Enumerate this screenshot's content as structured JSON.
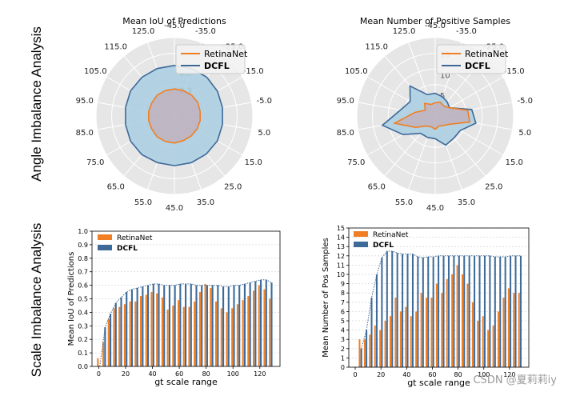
{
  "row_labels": {
    "top": "Angle Imbalance Analysis",
    "bottom": "Scale Imbalance Analysis"
  },
  "watermark": "CSDN @夏莉莉iy",
  "colors": {
    "retinanet": "#F07F23",
    "dcfl": "#3D6A99",
    "dcfl_fill": "#A8CCE0",
    "retina_fill": "#C9A0A8",
    "polar_bg": "#E6E6E6",
    "grid": "#FFFFFF"
  },
  "chart_data": [
    {
      "type": "radar",
      "title": "Mean IoU of Predictions",
      "angle_labels": [
        "-45.0",
        "-35.0",
        "-25.0",
        "-15.0",
        "-5.0",
        "5.0",
        "15.0",
        "25.0",
        "35.0",
        "45.0",
        "55.0",
        "65.0",
        "75.0",
        "85.0",
        "95.0",
        "105.0",
        "115.0",
        "125.0"
      ],
      "radial_ticks": [
        "0.3",
        "0.5"
      ],
      "rmax": 0.9,
      "legend": [
        "RetinaNet",
        "DCFL"
      ],
      "series": [
        {
          "name": "RetinaNet",
          "values": [
            0.31,
            0.31,
            0.31,
            0.31,
            0.3,
            0.3,
            0.3,
            0.3,
            0.3,
            0.31,
            0.31,
            0.31,
            0.3,
            0.3,
            0.3,
            0.3,
            0.31,
            0.31
          ]
        },
        {
          "name": "DCFL",
          "values": [
            0.58,
            0.58,
            0.58,
            0.57,
            0.56,
            0.56,
            0.57,
            0.57,
            0.57,
            0.57,
            0.57,
            0.58,
            0.58,
            0.57,
            0.57,
            0.58,
            0.58,
            0.58
          ]
        }
      ]
    },
    {
      "type": "radar",
      "title": "Mean Number of Positive Samples",
      "angle_labels": [
        "-45.0",
        "-35.0",
        "-25.0",
        "-15.0",
        "-5.0",
        "5.0",
        "15.0",
        "25.0",
        "35.0",
        "45.0",
        "55.0",
        "65.0",
        "75.0",
        "85.0",
        "95.0",
        "105.0",
        "115.0",
        "125.0"
      ],
      "radial_ticks": [
        "5",
        "10",
        "15"
      ],
      "rmax": 19,
      "legend": [
        "RetinaNet",
        "DCFL"
      ],
      "series": [
        {
          "name": "RetinaNet",
          "values": [
            3.2,
            3.6,
            3.2,
            4.0,
            8.0,
            8.5,
            4.0,
            3.0,
            2.6,
            3.2,
            2.8,
            3.2,
            5.5,
            10.0,
            5.0,
            2.8,
            4.0,
            3.0
          ]
        },
        {
          "name": "DCFL",
          "values": [
            5.5,
            5.0,
            4.5,
            4.0,
            9.0,
            10.0,
            7.0,
            7.0,
            7.5,
            5.5,
            5.5,
            5.5,
            9.0,
            13.0,
            8.5,
            7.0,
            9.5,
            5.5
          ]
        }
      ]
    },
    {
      "type": "bar",
      "xlabel": "gt scale range",
      "ylabel": "Mean IoU of Predictions",
      "xticks": [
        "0",
        "20",
        "40",
        "60",
        "80",
        "100",
        "120"
      ],
      "yticks": [
        "0.0",
        "0.1",
        "0.2",
        "0.3",
        "0.4",
        "0.5",
        "0.6",
        "0.7",
        "0.8",
        "0.9",
        "1.0"
      ],
      "ylim": [
        0,
        1.0
      ],
      "xlim": [
        -5,
        135
      ],
      "x": [
        0,
        4,
        8,
        12,
        16,
        20,
        24,
        28,
        32,
        36,
        40,
        44,
        48,
        52,
        56,
        60,
        64,
        68,
        72,
        76,
        80,
        84,
        88,
        92,
        96,
        100,
        104,
        108,
        112,
        116,
        120,
        124,
        128
      ],
      "legend": [
        "RetinaNet",
        "DCFL"
      ],
      "series": [
        {
          "name": "RetinaNet",
          "values": [
            0.06,
            0.18,
            0.35,
            0.43,
            0.44,
            0.46,
            0.48,
            0.48,
            0.52,
            0.53,
            0.55,
            0.54,
            0.51,
            0.42,
            0.45,
            0.49,
            0.44,
            0.44,
            0.48,
            0.55,
            0.61,
            0.58,
            0.48,
            0.43,
            0.4,
            0.43,
            0.46,
            0.49,
            0.52,
            0.56,
            0.6,
            0.57,
            0.5
          ]
        },
        {
          "name": "DCFL",
          "values": [
            0.0,
            0.29,
            0.39,
            0.47,
            0.51,
            0.55,
            0.57,
            0.58,
            0.59,
            0.6,
            0.61,
            0.61,
            0.6,
            0.6,
            0.6,
            0.61,
            0.61,
            0.61,
            0.6,
            0.6,
            0.6,
            0.6,
            0.6,
            0.59,
            0.59,
            0.6,
            0.6,
            0.61,
            0.62,
            0.63,
            0.64,
            0.64,
            0.62
          ]
        }
      ]
    },
    {
      "type": "bar",
      "xlabel": "gt scale range",
      "ylabel": "Mean Number of Pos Samples",
      "xticks": [
        "0",
        "20",
        "40",
        "60",
        "80",
        "100",
        "120"
      ],
      "yticks": [
        "0",
        "1",
        "2",
        "3",
        "4",
        "5",
        "6",
        "7",
        "8",
        "9",
        "10",
        "11",
        "12",
        "13",
        "14",
        "15"
      ],
      "ylim": [
        0,
        15
      ],
      "xlim": [
        -5,
        135
      ],
      "x": [
        4,
        8,
        12,
        16,
        20,
        24,
        28,
        32,
        36,
        40,
        44,
        48,
        52,
        56,
        60,
        64,
        68,
        72,
        76,
        80,
        84,
        88,
        92,
        96,
        100,
        104,
        108,
        112,
        116,
        120,
        124,
        128
      ],
      "legend": [
        "RetinaNet",
        "DCFL"
      ],
      "series": [
        {
          "name": "RetinaNet",
          "values": [
            3.0,
            3.0,
            3.5,
            4.5,
            4.0,
            5.0,
            5.5,
            7.5,
            6.0,
            6.5,
            5.5,
            6.0,
            8.0,
            7.5,
            7.5,
            9.0,
            8.0,
            9.5,
            10.0,
            11.0,
            10.0,
            9.0,
            7.0,
            5.0,
            5.5,
            4.0,
            4.5,
            6.0,
            7.5,
            8.5,
            8.0,
            8.0
          ]
        },
        {
          "name": "DCFL",
          "values": [
            2.0,
            4.0,
            7.5,
            10.0,
            11.8,
            12.5,
            12.5,
            12.3,
            12.2,
            12.2,
            12.2,
            11.9,
            11.8,
            11.9,
            11.9,
            12.0,
            12.0,
            12.0,
            12.0,
            12.0,
            12.0,
            12.0,
            12.0,
            12.0,
            12.0,
            12.0,
            11.9,
            11.9,
            11.9,
            12.0,
            12.0,
            12.0
          ]
        }
      ]
    }
  ]
}
